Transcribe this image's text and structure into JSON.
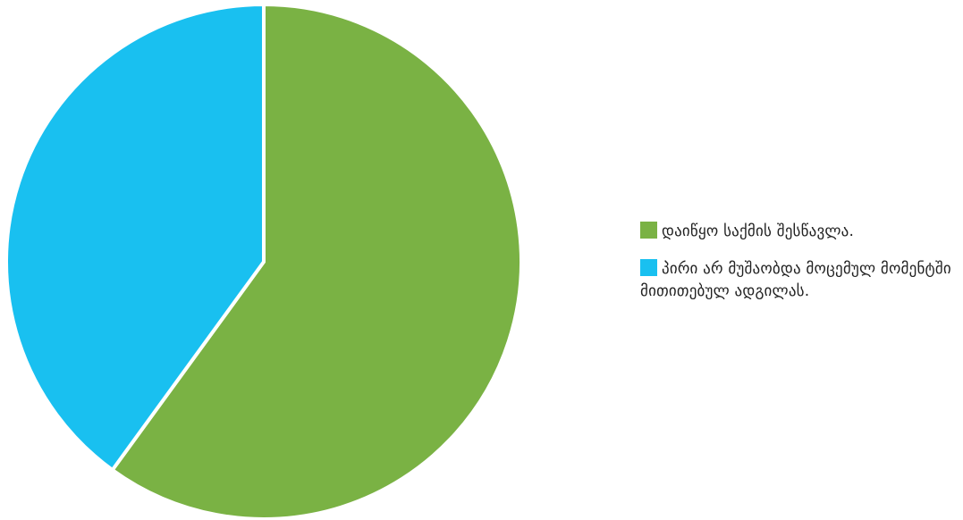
{
  "chart_data": {
    "type": "pie",
    "title": "",
    "series": [
      {
        "name": "",
        "slices": [
          {
            "label": "დაიწყო საქმის შესწავლა.",
            "value": 60,
            "color": "#7AB244"
          },
          {
            "label": "პირი არ მუშაობდა მოცემულ მომენტში მითითებულ ადგილას.",
            "value": 40,
            "color": "#19C0F0"
          }
        ]
      }
    ],
    "start_angle_deg": 0,
    "direction": "clockwise",
    "legend_position": "right",
    "slice_border_color": "#FFFFFF"
  }
}
